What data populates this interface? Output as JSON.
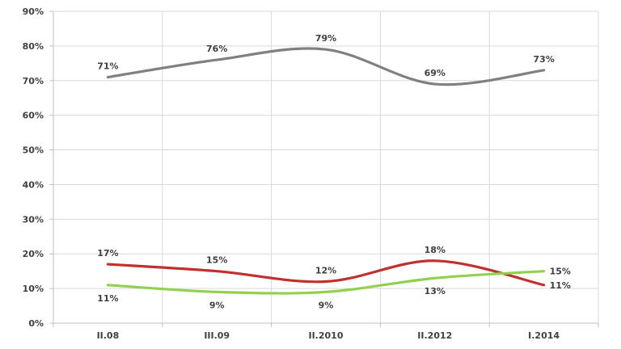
{
  "chart_data": {
    "type": "line",
    "categories": [
      "II.08",
      "III.09",
      "II.2010",
      "II.2012",
      "I.2014"
    ],
    "ylim": [
      0,
      90
    ],
    "yticks": [
      0,
      10,
      20,
      30,
      40,
      50,
      60,
      70,
      80,
      90
    ],
    "ytick_labels": [
      "0%",
      "10%",
      "20%",
      "30%",
      "40%",
      "50%",
      "60%",
      "70%",
      "80%",
      "90%"
    ],
    "grid": true,
    "series": [
      {
        "color": "#808080",
        "values": [
          71,
          76,
          79,
          69,
          73
        ],
        "labels": [
          "71%",
          "76%",
          "79%",
          "69%",
          "73%"
        ],
        "label_pos": [
          "above",
          "above",
          "above",
          "above",
          "above"
        ]
      },
      {
        "color": "#c0302e",
        "values": [
          17,
          15,
          12,
          18,
          11
        ],
        "labels": [
          "17%",
          "15%",
          "12%",
          "18%",
          "11%"
        ],
        "label_pos": [
          "above",
          "above",
          "above",
          "above",
          "right"
        ]
      },
      {
        "color": "#92d050",
        "values": [
          11,
          9,
          9,
          13,
          15
        ],
        "labels": [
          "11%",
          "9%",
          "9%",
          "13%",
          "15%"
        ],
        "label_pos": [
          "below",
          "below",
          "below",
          "below",
          "right"
        ]
      }
    ]
  }
}
